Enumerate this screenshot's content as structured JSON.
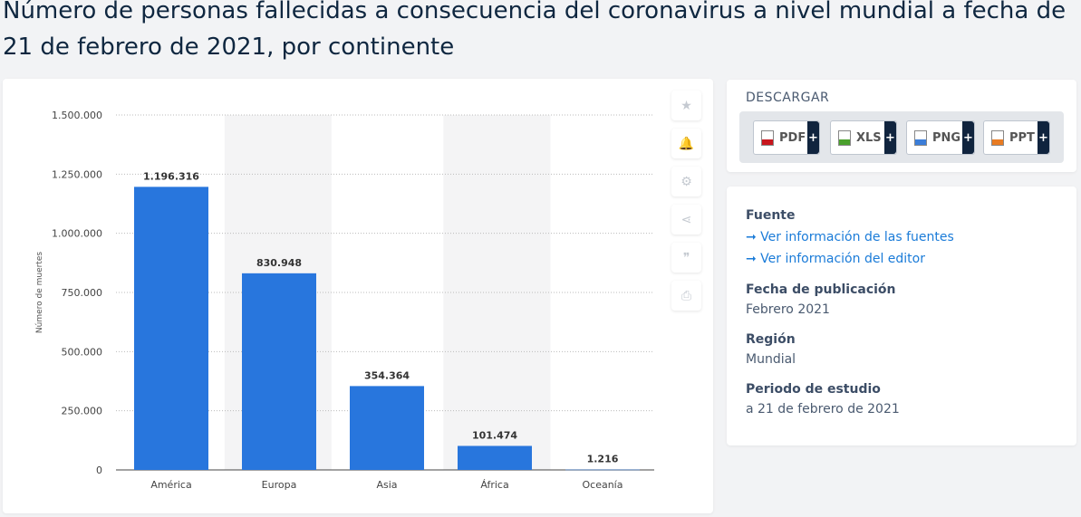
{
  "title": "Número de personas fallecidas a consecuencia del coronavirus a nivel mundial a fecha de 21 de febrero de 2021, por continente",
  "tools": [
    "star-icon",
    "bell-icon",
    "gear-icon",
    "share-icon",
    "quote-icon",
    "print-icon"
  ],
  "download": {
    "heading": "DESCARGAR",
    "buttons": [
      {
        "label": "PDF",
        "color": "#c8161d"
      },
      {
        "label": "XLS",
        "color": "#4aa02c"
      },
      {
        "label": "PNG",
        "color": "#3b7dd8"
      },
      {
        "label": "PPT",
        "color": "#e87b22"
      }
    ],
    "plus": "+"
  },
  "info": {
    "fuente_label": "Fuente",
    "link1": "➞ Ver información de las fuentes",
    "link2": "➞ Ver información del editor",
    "pub_label": "Fecha de publicación",
    "pub_value": "Febrero 2021",
    "region_label": "Región",
    "region_value": "Mundial",
    "period_label": "Periodo de estudio",
    "period_value": "a 21 de febrero de 2021"
  },
  "chart_data": {
    "type": "bar",
    "categories": [
      "América",
      "Europa",
      "Asia",
      "África",
      "Oceanía"
    ],
    "values": [
      1196316,
      830948,
      354364,
      101474,
      1216
    ],
    "value_labels": [
      "1.196.316",
      "830.948",
      "354.364",
      "101.474",
      "1.216"
    ],
    "ylabel": "Número de muertes",
    "ylim": [
      0,
      1500000
    ],
    "yticks": [
      0,
      250000,
      500000,
      750000,
      1000000,
      1250000,
      1500000
    ],
    "ytick_labels": [
      "0",
      "250.000",
      "500.000",
      "750.000",
      "1.000.000",
      "1.250.000",
      "1.500.000"
    ],
    "bar_color": "#2876dd",
    "grid": true
  }
}
